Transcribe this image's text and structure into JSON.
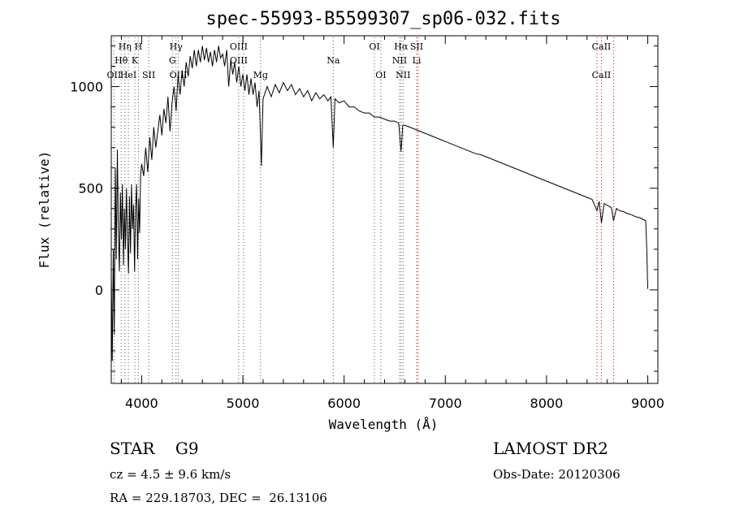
{
  "chart_data": {
    "type": "line",
    "title": "spec-55993-B5599307_sp06-032.fits",
    "xlabel": "Wavelength (Å)",
    "ylabel": "Flux (relative)",
    "xlim": [
      3700,
      9100
    ],
    "ylim": [
      -460,
      1250
    ],
    "xticks": [
      4000,
      5000,
      6000,
      7000,
      8000,
      9000
    ],
    "yticks": [
      0,
      500,
      1000
    ],
    "grid": false,
    "series": [
      {
        "points": [
          [
            3700,
            80
          ],
          [
            3710,
            -350
          ],
          [
            3720,
            200
          ],
          [
            3730,
            -220
          ],
          [
            3740,
            600
          ],
          [
            3750,
            150
          ],
          [
            3760,
            690
          ],
          [
            3770,
            300
          ],
          [
            3780,
            90
          ],
          [
            3790,
            480
          ],
          [
            3800,
            250
          ],
          [
            3810,
            520
          ],
          [
            3820,
            120
          ],
          [
            3830,
            400
          ],
          [
            3840,
            200
          ],
          [
            3850,
            500
          ],
          [
            3860,
            260
          ],
          [
            3870,
            80
          ],
          [
            3880,
            460
          ],
          [
            3890,
            180
          ],
          [
            3900,
            520
          ],
          [
            3910,
            300
          ],
          [
            3920,
            420
          ],
          [
            3930,
            90
          ],
          [
            3940,
            400
          ],
          [
            3950,
            520
          ],
          [
            3960,
            150
          ],
          [
            3970,
            450
          ],
          [
            3980,
            280
          ],
          [
            3990,
            560
          ],
          [
            4000,
            620
          ],
          [
            4020,
            560
          ],
          [
            4040,
            700
          ],
          [
            4060,
            580
          ],
          [
            4080,
            750
          ],
          [
            4100,
            640
          ],
          [
            4120,
            800
          ],
          [
            4140,
            700
          ],
          [
            4160,
            780
          ],
          [
            4180,
            860
          ],
          [
            4200,
            760
          ],
          [
            4220,
            890
          ],
          [
            4240,
            820
          ],
          [
            4260,
            950
          ],
          [
            4280,
            780
          ],
          [
            4300,
            920
          ],
          [
            4320,
            1000
          ],
          [
            4340,
            880
          ],
          [
            4360,
            1060
          ],
          [
            4380,
            960
          ],
          [
            4400,
            1080
          ],
          [
            4420,
            1000
          ],
          [
            4440,
            1120
          ],
          [
            4460,
            1050
          ],
          [
            4480,
            1150
          ],
          [
            4500,
            1090
          ],
          [
            4520,
            1180
          ],
          [
            4540,
            1100
          ],
          [
            4560,
            1180
          ],
          [
            4580,
            1120
          ],
          [
            4600,
            1200
          ],
          [
            4620,
            1130
          ],
          [
            4640,
            1190
          ],
          [
            4660,
            1120
          ],
          [
            4680,
            1170
          ],
          [
            4700,
            1100
          ],
          [
            4720,
            1180
          ],
          [
            4740,
            1120
          ],
          [
            4760,
            1200
          ],
          [
            4780,
            1140
          ],
          [
            4800,
            1160
          ],
          [
            4820,
            1100
          ],
          [
            4840,
            1180
          ],
          [
            4860,
            1000
          ],
          [
            4880,
            1130
          ],
          [
            4900,
            1060
          ],
          [
            4920,
            1120
          ],
          [
            4940,
            1020
          ],
          [
            4960,
            1100
          ],
          [
            4980,
            1000
          ],
          [
            5000,
            1060
          ],
          [
            5020,
            980
          ],
          [
            5040,
            1060
          ],
          [
            5060,
            960
          ],
          [
            5080,
            1040
          ],
          [
            5100,
            960
          ],
          [
            5120,
            1020
          ],
          [
            5140,
            900
          ],
          [
            5160,
            980
          ],
          [
            5183,
            610
          ],
          [
            5200,
            940
          ],
          [
            5240,
            1000
          ],
          [
            5280,
            950
          ],
          [
            5320,
            1010
          ],
          [
            5360,
            970
          ],
          [
            5400,
            1020
          ],
          [
            5440,
            980
          ],
          [
            5480,
            1010
          ],
          [
            5520,
            960
          ],
          [
            5560,
            990
          ],
          [
            5600,
            950
          ],
          [
            5640,
            980
          ],
          [
            5680,
            930
          ],
          [
            5720,
            970
          ],
          [
            5760,
            940
          ],
          [
            5800,
            960
          ],
          [
            5840,
            930
          ],
          [
            5870,
            950
          ],
          [
            5893,
            700
          ],
          [
            5910,
            940
          ],
          [
            5950,
            920
          ],
          [
            6000,
            930
          ],
          [
            6050,
            900
          ],
          [
            6100,
            900
          ],
          [
            6150,
            880
          ],
          [
            6200,
            870
          ],
          [
            6250,
            870
          ],
          [
            6300,
            850
          ],
          [
            6350,
            850
          ],
          [
            6400,
            840
          ],
          [
            6450,
            830
          ],
          [
            6500,
            830
          ],
          [
            6540,
            820
          ],
          [
            6563,
            680
          ],
          [
            6580,
            810
          ],
          [
            6600,
            810
          ],
          [
            6650,
            800
          ],
          [
            6700,
            790
          ],
          [
            6750,
            780
          ],
          [
            6800,
            770
          ],
          [
            6850,
            760
          ],
          [
            6900,
            750
          ],
          [
            6950,
            740
          ],
          [
            7000,
            730
          ],
          [
            7050,
            720
          ],
          [
            7100,
            710
          ],
          [
            7150,
            700
          ],
          [
            7200,
            690
          ],
          [
            7250,
            680
          ],
          [
            7300,
            670
          ],
          [
            7350,
            665
          ],
          [
            7400,
            655
          ],
          [
            7450,
            645
          ],
          [
            7500,
            635
          ],
          [
            7550,
            625
          ],
          [
            7600,
            615
          ],
          [
            7650,
            605
          ],
          [
            7700,
            595
          ],
          [
            7750,
            585
          ],
          [
            7800,
            575
          ],
          [
            7850,
            565
          ],
          [
            7900,
            555
          ],
          [
            7950,
            545
          ],
          [
            8000,
            535
          ],
          [
            8050,
            525
          ],
          [
            8100,
            515
          ],
          [
            8150,
            505
          ],
          [
            8200,
            495
          ],
          [
            8250,
            485
          ],
          [
            8300,
            475
          ],
          [
            8350,
            465
          ],
          [
            8400,
            455
          ],
          [
            8450,
            445
          ],
          [
            8498,
            390
          ],
          [
            8520,
            435
          ],
          [
            8542,
            330
          ],
          [
            8570,
            425
          ],
          [
            8600,
            415
          ],
          [
            8640,
            405
          ],
          [
            8662,
            340
          ],
          [
            8690,
            400
          ],
          [
            8720,
            390
          ],
          [
            8760,
            385
          ],
          [
            8800,
            375
          ],
          [
            8840,
            370
          ],
          [
            8880,
            360
          ],
          [
            8920,
            355
          ],
          [
            8960,
            345
          ],
          [
            8980,
            340
          ],
          [
            8990,
            200
          ],
          [
            9000,
            5
          ]
        ]
      }
    ],
    "lines": [
      {
        "wl": 3727,
        "labels": [
          {
            "text": "OII",
            "row": 3
          }
        ]
      },
      {
        "wl": 3798,
        "labels": [
          {
            "text": "Hθ",
            "row": 2
          }
        ]
      },
      {
        "wl": 3835,
        "labels": [
          {
            "text": "Hη",
            "row": 1
          }
        ]
      },
      {
        "wl": 3869,
        "labels": [
          {
            "text": "HeI",
            "row": 3
          }
        ]
      },
      {
        "wl": 3933,
        "labels": [
          {
            "text": "K",
            "row": 2
          }
        ]
      },
      {
        "wl": 3968,
        "labels": [
          {
            "text": "H",
            "row": 1
          }
        ]
      },
      {
        "wl": 4070,
        "labels": [
          {
            "text": "SII",
            "row": 3
          }
        ]
      },
      {
        "wl": 4304,
        "labels": [
          {
            "text": "G",
            "row": 2
          }
        ]
      },
      {
        "wl": 4340,
        "labels": [
          {
            "text": "Hγ",
            "row": 1
          }
        ]
      },
      {
        "wl": 4363,
        "labels": [
          {
            "text": "OIII",
            "row": 3
          }
        ]
      },
      {
        "wl": 4959,
        "labels": [
          {
            "text": "OIII",
            "row": 1
          },
          {
            "text": "OIII",
            "row": 2
          }
        ]
      },
      {
        "wl": 5007,
        "labels": []
      },
      {
        "wl": 5175,
        "labels": [
          {
            "text": "Mg",
            "row": 3
          }
        ]
      },
      {
        "wl": 5893,
        "labels": [
          {
            "text": "Na",
            "row": 2
          }
        ]
      },
      {
        "wl": 6300,
        "labels": [
          {
            "text": "OI",
            "row": 1
          }
        ]
      },
      {
        "wl": 6363,
        "labels": [
          {
            "text": "OI",
            "row": 3
          }
        ]
      },
      {
        "wl": 6548,
        "labels": [
          {
            "text": "NII",
            "row": 2
          }
        ]
      },
      {
        "wl": 6563,
        "labels": [
          {
            "text": "Hα",
            "row": 1
          }
        ]
      },
      {
        "wl": 6583,
        "labels": [
          {
            "text": "NII",
            "row": 3
          }
        ]
      },
      {
        "wl": 6717,
        "labels": [
          {
            "text": "SII",
            "row": 1
          },
          {
            "text": "Li",
            "row": 2
          }
        ]
      },
      {
        "wl": 6731,
        "labels": []
      },
      {
        "wl": 8498,
        "labels": []
      },
      {
        "wl": 8542,
        "labels": [
          {
            "text": "CaII",
            "row": 1
          },
          {
            "text": "CaII",
            "row": 3
          }
        ]
      },
      {
        "wl": 8662,
        "labels": []
      }
    ],
    "line_colors": {
      "emission": "#d40000",
      "absorption": "#555555"
    }
  },
  "info": {
    "class": "STAR",
    "subclass": "G9",
    "survey": "LAMOST DR2",
    "velocity": "cz = 4.5 ± 9.6 km/s",
    "obs_date": "Obs-Date: 20120306",
    "coords": "RA = 229.18703, DEC =  26.13106"
  }
}
